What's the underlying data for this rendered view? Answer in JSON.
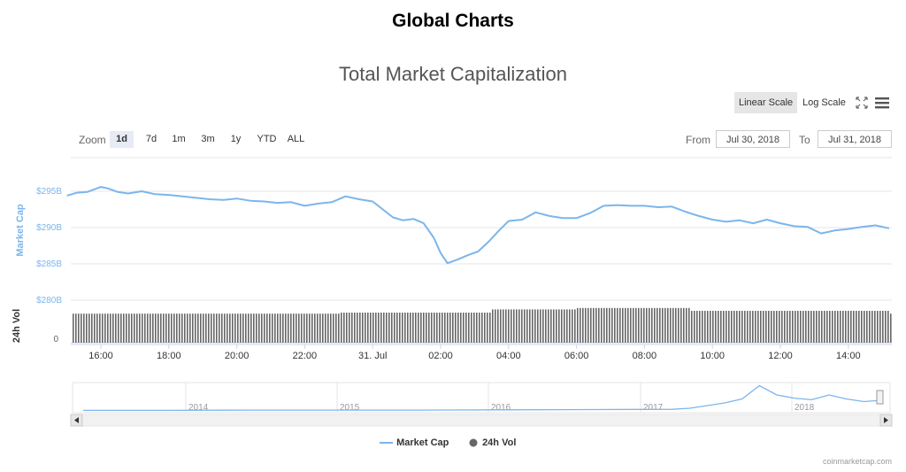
{
  "header": {
    "title": "Global Charts"
  },
  "chart_data": {
    "type": "line",
    "title": "Total Market Capitalization",
    "ylabel": "Market Cap",
    "ylabel2": "24h Vol",
    "ylim": [
      280,
      297
    ],
    "yticks": [
      "$295B",
      "$290B",
      "$285B",
      "$280B"
    ],
    "y2ticks": [
      "0"
    ],
    "xticks": [
      "16:00",
      "18:00",
      "20:00",
      "22:00",
      "31. Jul",
      "02:00",
      "04:00",
      "06:00",
      "08:00",
      "10:00",
      "12:00",
      "14:00"
    ],
    "x_hours": [
      15.0,
      15.3,
      15.6,
      16.0,
      16.2,
      16.5,
      16.8,
      17.2,
      17.6,
      18.0,
      18.4,
      18.8,
      19.2,
      19.6,
      20.0,
      20.4,
      20.8,
      21.2,
      21.6,
      22.0,
      22.4,
      22.8,
      23.2,
      23.6,
      24.0,
      24.3,
      24.6,
      24.9,
      25.2,
      25.5,
      25.8,
      26.0,
      26.2,
      26.5,
      26.8,
      27.1,
      27.4,
      27.7,
      28.0,
      28.4,
      28.8,
      29.2,
      29.6,
      30.0,
      30.4,
      30.8,
      31.2,
      31.6,
      32.0,
      32.4,
      32.8,
      33.2,
      33.6,
      34.0,
      34.4,
      34.8,
      35.2,
      35.6,
      36.0,
      36.4,
      36.8,
      37.2,
      37.6,
      38.0,
      38.4,
      38.8,
      39.2
    ],
    "series": [
      {
        "name": "Market Cap",
        "color": "#7cb5ec",
        "values": [
          294.4,
          294.8,
          294.9,
          295.6,
          295.4,
          294.9,
          294.7,
          295.0,
          294.6,
          294.5,
          294.3,
          294.1,
          293.9,
          293.8,
          294.0,
          293.7,
          293.6,
          293.4,
          293.5,
          293.0,
          293.3,
          293.5,
          294.3,
          293.9,
          293.6,
          292.5,
          291.4,
          291.0,
          291.2,
          290.6,
          288.6,
          286.5,
          285.1,
          285.6,
          286.2,
          286.7,
          288.0,
          289.5,
          290.9,
          291.1,
          292.1,
          291.6,
          291.3,
          291.3,
          292.0,
          293.0,
          293.1,
          293.0,
          293.0,
          292.8,
          292.9,
          292.2,
          291.6,
          291.1,
          290.8,
          291.0,
          290.6,
          291.1,
          290.6,
          290.2,
          290.1,
          289.2,
          289.6,
          289.8,
          290.1,
          290.3,
          289.9
        ]
      },
      {
        "name": "24h Vol",
        "color": "#666666",
        "segments": [
          {
            "from": 15.0,
            "to": 23.0,
            "level": 0.82
          },
          {
            "from": 23.0,
            "to": 27.5,
            "level": 0.85
          },
          {
            "from": 27.5,
            "to": 30.0,
            "level": 0.94
          },
          {
            "from": 30.0,
            "to": 33.3,
            "level": 0.98
          },
          {
            "from": 33.3,
            "to": 39.2,
            "level": 0.9
          }
        ]
      }
    ],
    "legend": {
      "position": "bottom-center"
    }
  },
  "toolbar": {
    "linear_scale": "Linear Scale",
    "log_scale": "Log Scale"
  },
  "range_selector": {
    "zoom_label": "Zoom",
    "buttons": [
      "1d",
      "7d",
      "1m",
      "3m",
      "1y",
      "YTD",
      "ALL"
    ],
    "selected": "1d",
    "from_label": "From",
    "from_value": "Jul 30, 2018",
    "to_label": "To",
    "to_value": "Jul 31, 2018"
  },
  "navigator": {
    "years": [
      "2014",
      "2015",
      "2016",
      "2017",
      "2018"
    ],
    "values": [
      0.02,
      0.02,
      0.03,
      0.03,
      0.03,
      0.04,
      0.05,
      0.06,
      0.1,
      0.2,
      0.3,
      0.45,
      0.95,
      0.6,
      0.48,
      0.42,
      0.6,
      0.45,
      0.35,
      0.4
    ]
  },
  "credits": "coinmarketcap.com"
}
